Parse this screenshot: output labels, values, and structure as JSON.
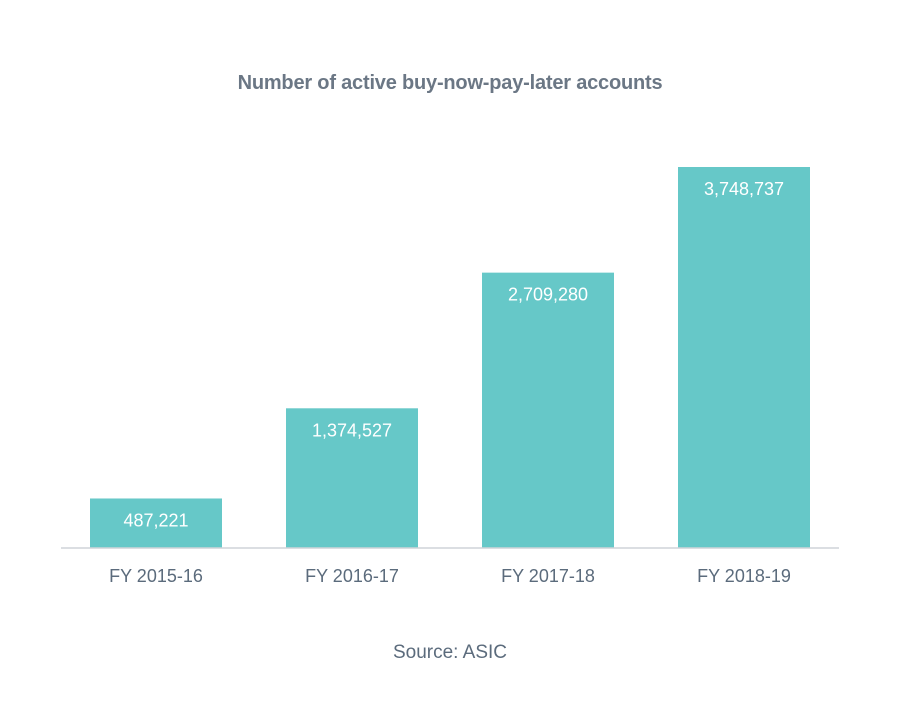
{
  "chart_data": {
    "type": "bar",
    "title": "Number of active buy-now-pay-later accounts",
    "categories": [
      "FY 2015-16",
      "FY 2016-17",
      "FY 2017-18",
      "FY 2018-19"
    ],
    "values": [
      487221,
      1374527,
      2709280,
      3748737
    ],
    "value_labels": [
      "487,221",
      "1,374,527",
      "2,709,280",
      "3,748,737"
    ],
    "xlabel": "",
    "ylabel": "",
    "ylim": [
      0,
      3748737
    ],
    "grid": false,
    "legend": "none",
    "bar_color": "#66c8c8",
    "axis_color": "#cfd4d8",
    "source": "Source: ASIC"
  }
}
